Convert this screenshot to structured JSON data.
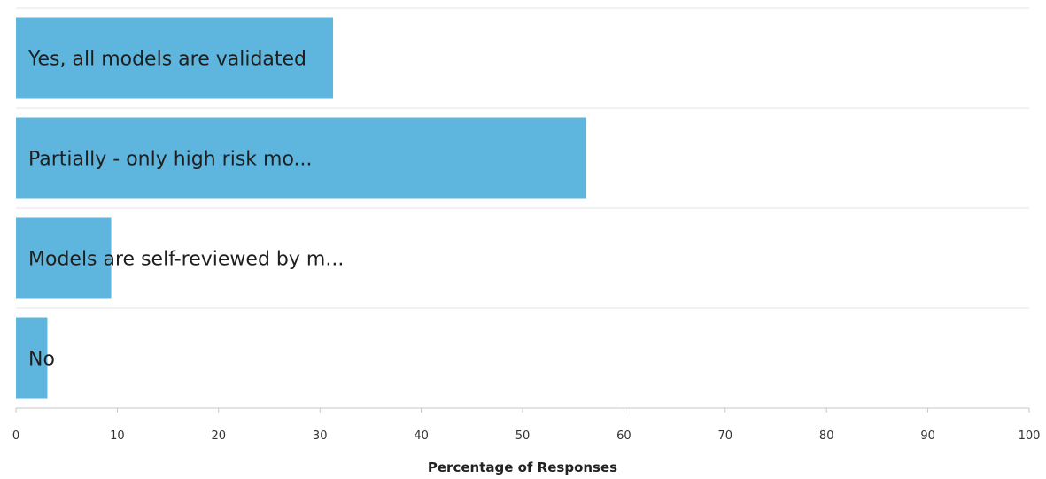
{
  "chart_data": {
    "type": "bar",
    "orientation": "horizontal",
    "categories": [
      "Yes, all models are validated",
      "Partially - only high risk mo...",
      "Models are self-reviewed by m...",
      "No"
    ],
    "values": [
      31.3,
      56.3,
      9.4,
      3.1
    ],
    "xlabel": "Percentage of Responses",
    "ylabel": "",
    "xlim": [
      0,
      100
    ],
    "ticks": [
      "0",
      "10",
      "20",
      "30",
      "40",
      "50",
      "60",
      "70",
      "80",
      "90",
      "100"
    ],
    "bar_color": "#5eb6de",
    "grid": true
  }
}
